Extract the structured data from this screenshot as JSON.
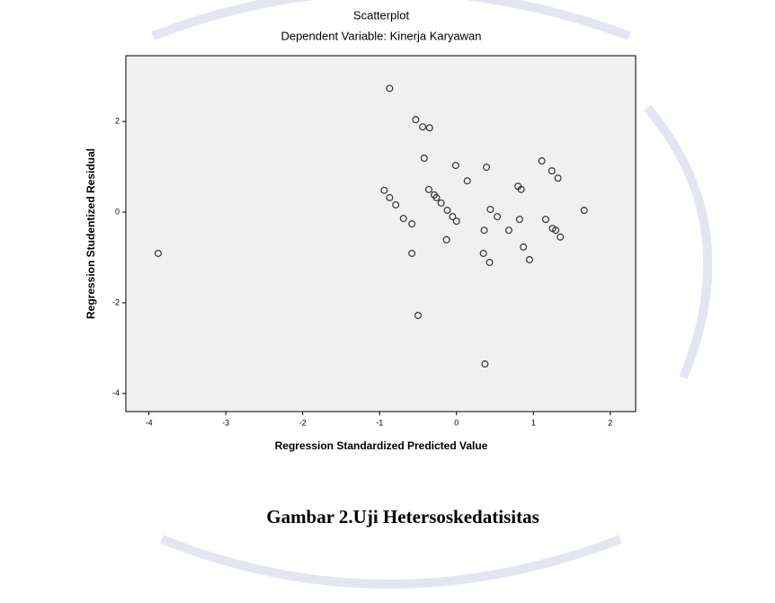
{
  "chart_data": {
    "type": "scatter",
    "title": "Scatterplot",
    "subtitle": "Dependent Variable: Kinerja Karyawan",
    "x_label": "Regression Standardized Predicted Value",
    "y_label": "Regression Studentized Residual",
    "xlim": [
      -4.3,
      2.33
    ],
    "ylim": [
      -4.4,
      3.45
    ],
    "xticks": [
      -4,
      -3,
      -2,
      -1,
      0,
      1,
      2
    ],
    "yticks": [
      -4,
      -2,
      0,
      2
    ],
    "color": "#333333",
    "series": [
      {
        "x": [
          -3.88,
          -0.87,
          -0.53,
          -0.44,
          -0.35,
          -0.42,
          -0.01,
          0.14,
          0.39,
          1.11,
          1.24,
          1.32,
          0.8,
          0.84,
          -0.94,
          -0.87,
          -0.79,
          -0.69,
          -0.58,
          -0.36,
          -0.29,
          -0.26,
          -0.2,
          -0.12,
          -0.05,
          0.0,
          0.44,
          0.53,
          0.36,
          0.68,
          0.82,
          1.16,
          1.25,
          1.29,
          1.35,
          1.66,
          -0.13,
          -0.58,
          0.35,
          0.43,
          0.87,
          0.95,
          -0.5,
          0.37
        ],
        "values": [
          -0.91,
          2.73,
          2.04,
          1.88,
          1.86,
          1.19,
          1.03,
          0.69,
          0.99,
          1.13,
          0.91,
          0.75,
          0.57,
          0.5,
          0.48,
          0.32,
          0.16,
          -0.14,
          -0.26,
          0.5,
          0.38,
          0.32,
          0.2,
          0.04,
          -0.1,
          -0.2,
          0.06,
          -0.1,
          -0.4,
          -0.4,
          -0.16,
          -0.16,
          -0.36,
          -0.4,
          -0.55,
          0.04,
          -0.61,
          -0.91,
          -0.91,
          -1.11,
          -0.77,
          -1.05,
          -2.28,
          -3.35
        ]
      }
    ]
  },
  "caption": "Gambar 2.Uji Hetersoskedatisitas"
}
